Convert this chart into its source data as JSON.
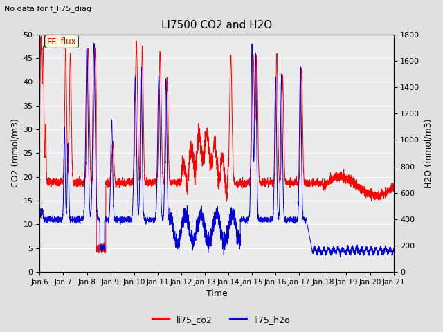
{
  "title": "LI7500 CO2 and H2O",
  "suptitle": "No data for f_li75_diag",
  "xlabel": "Time",
  "ylabel_left": "CO2 (mmol/m3)",
  "ylabel_right": "H2O (mmol/m3)",
  "ylim_left": [
    0,
    50
  ],
  "ylim_right": [
    0,
    1800
  ],
  "yticks_left": [
    0,
    5,
    10,
    15,
    20,
    25,
    30,
    35,
    40,
    45,
    50
  ],
  "yticks_right": [
    0,
    200,
    400,
    600,
    800,
    1000,
    1200,
    1400,
    1600,
    1800
  ],
  "xticklabels": [
    "Jan 6",
    "Jan 7",
    "Jan 8",
    "Jan 9",
    "Jan 10",
    "Jan 11",
    "Jan 12",
    "Jan 13",
    "Jan 14",
    "Jan 15",
    "Jan 16",
    "Jan 17",
    "Jan 18",
    "Jan 19",
    "Jan 20",
    "Jan 21"
  ],
  "color_co2": "#ff0000",
  "color_h2o": "#0000dd",
  "legend_co2": "li75_co2",
  "legend_h2o": "li75_h2o",
  "annotation_text": "EE_flux",
  "background_color": "#e0e0e0",
  "plot_bg_color": "#ebebeb",
  "n_points": 4000,
  "seed": 7
}
